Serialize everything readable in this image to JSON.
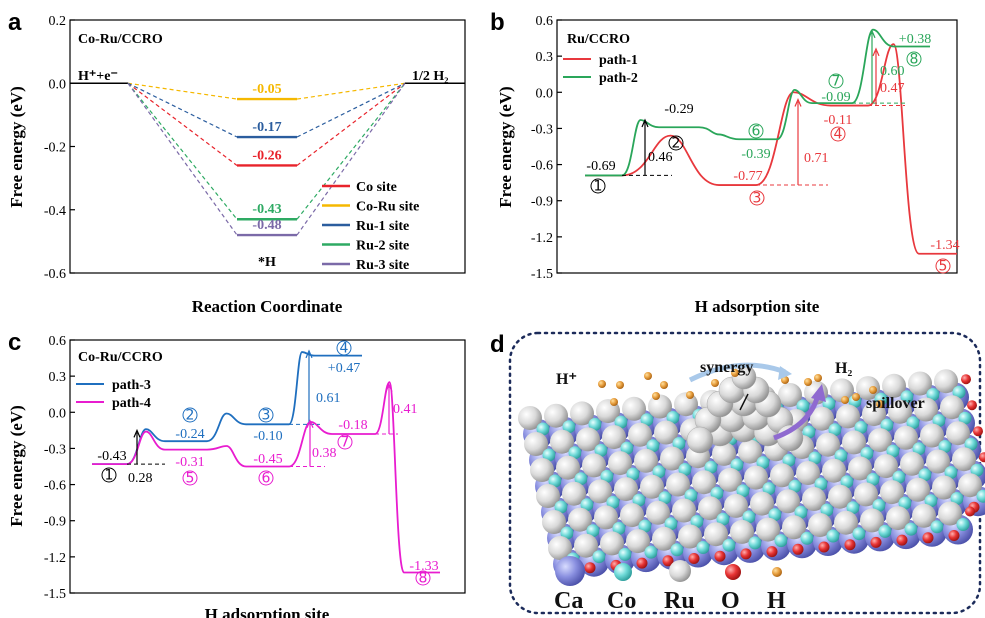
{
  "panels": [
    {
      "letter": "a",
      "title": "Co-Ru/CCRO",
      "xlabel": "Reaction Coordinate",
      "ylabel": "Free energy (eV)",
      "ylim": [
        -0.6,
        0.2
      ],
      "yticks": [
        "0.2",
        "0.0",
        "-0.2",
        "-0.4",
        "-0.6"
      ],
      "left_label": "H⁺+e⁻",
      "right_label": "1/2 H₂",
      "bottom_label": "*H",
      "legend": [
        {
          "name": "Co site",
          "color": "#e8232b"
        },
        {
          "name": "Co-Ru site",
          "color": "#f5b800"
        },
        {
          "name": "Ru-1 site",
          "color": "#2b5d9e"
        },
        {
          "name": "Ru-2 site",
          "color": "#2eaa63"
        },
        {
          "name": "Ru-3 site",
          "color": "#7b6aa8"
        }
      ],
      "values": [
        "-0.05",
        "-0.17",
        "-0.26",
        "-0.43",
        "-0.48"
      ]
    },
    {
      "letter": "b",
      "title": "Ru/CCRO",
      "xlabel": "H adsorption site",
      "ylabel": "Free energy (eV)",
      "ylim": [
        -1.5,
        0.6
      ],
      "yticks": [
        "0.6",
        "0.3",
        "0.0",
        "-0.3",
        "-0.6",
        "-0.9",
        "-1.2",
        "-1.5"
      ],
      "legend": [
        {
          "name": "path-1",
          "color": "#e8383d"
        },
        {
          "name": "path-2",
          "color": "#2aa65a"
        }
      ]
    },
    {
      "letter": "c",
      "title": "Co-Ru/CCRO",
      "xlabel": "H adsorption site",
      "ylabel": "Free energy (eV)",
      "ylim": [
        -1.5,
        0.6
      ],
      "yticks": [
        "0.6",
        "0.3",
        "0.0",
        "-0.3",
        "-0.6",
        "-0.9",
        "-1.2",
        "-1.5"
      ],
      "legend": [
        {
          "name": "path-3",
          "color": "#1f6fbf"
        },
        {
          "name": "path-4",
          "color": "#e81ccf"
        }
      ]
    },
    {
      "letter": "d",
      "labels": {
        "hplus": "H⁺",
        "synergy": "synergy",
        "h2": "H₂",
        "spillover": "spillover"
      },
      "legend": [
        "Ca",
        "Co",
        "Ru",
        "O",
        "H"
      ]
    }
  ],
  "chart_data": [
    {
      "type": "line",
      "title": "Co-Ru/CCRO",
      "xlabel": "Reaction Coordinate",
      "ylabel": "Free energy (eV)",
      "ylim": [
        -0.6,
        0.2
      ],
      "states": [
        "H⁺+e⁻",
        "*H",
        "1/2 H₂"
      ],
      "series": [
        {
          "name": "Co site",
          "values": [
            0,
            -0.26,
            0
          ]
        },
        {
          "name": "Co-Ru site",
          "values": [
            0,
            -0.05,
            0
          ]
        },
        {
          "name": "Ru-1 site",
          "values": [
            0,
            -0.17,
            0
          ]
        },
        {
          "name": "Ru-2 site",
          "values": [
            0,
            -0.43,
            0
          ]
        },
        {
          "name": "Ru-3 site",
          "values": [
            0,
            -0.48,
            0
          ]
        }
      ]
    },
    {
      "type": "line",
      "title": "Ru/CCRO",
      "xlabel": "H adsorption site",
      "ylabel": "Free energy (eV)",
      "ylim": [
        -1.5,
        0.6
      ],
      "series": [
        {
          "name": "path-1",
          "sites": [
            "①",
            "③",
            "④",
            "⑤"
          ],
          "values": [
            -0.69,
            -0.77,
            -0.11,
            -1.34
          ],
          "barriers": [
            0.71,
            0.47
          ]
        },
        {
          "name": "path-2",
          "sites": [
            "①",
            "②",
            "⑥",
            "⑦",
            "⑧"
          ],
          "values": [
            -0.69,
            -0.29,
            -0.39,
            -0.09,
            0.38
          ],
          "barriers": [
            0.46,
            0.6
          ]
        }
      ]
    },
    {
      "type": "line",
      "title": "Co-Ru/CCRO",
      "xlabel": "H adsorption site",
      "ylabel": "Free energy (eV)",
      "ylim": [
        -1.5,
        0.6
      ],
      "series": [
        {
          "name": "path-3",
          "sites": [
            "①",
            "②",
            "③",
            "④"
          ],
          "values": [
            -0.43,
            -0.24,
            -0.1,
            0.47
          ],
          "barriers": [
            0.61
          ]
        },
        {
          "name": "path-4",
          "sites": [
            "①",
            "⑤",
            "⑥",
            "⑦",
            "⑧"
          ],
          "values": [
            -0.43,
            -0.31,
            -0.45,
            -0.18,
            -1.33
          ],
          "barriers": [
            0.28,
            0.38,
            0.41
          ]
        }
      ]
    }
  ]
}
